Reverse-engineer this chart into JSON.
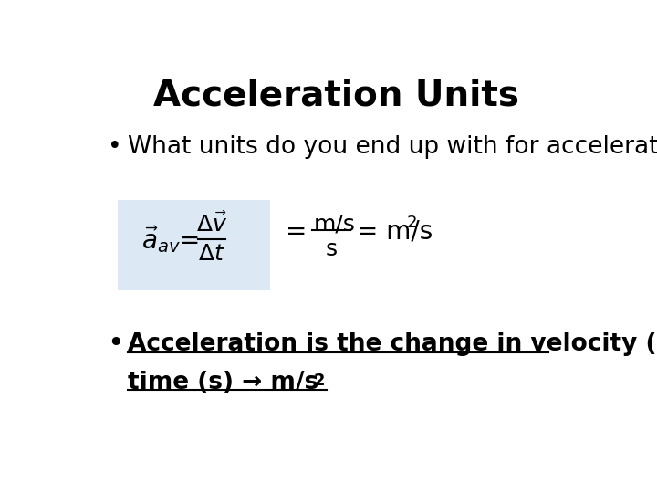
{
  "title": "Acceleration Units",
  "title_fontsize": 28,
  "title_fontweight": "bold",
  "bullet1": "What units do you end up with for acceleration?",
  "bullet1_fontsize": 19,
  "bullet2_line1": "Acceleration is the change in velocity (m/s) over",
  "bullet2_line2": "time (s) → m/s",
  "bullet2_fontsize": 19,
  "formula_box_color": "#dce9f5",
  "background_color": "#ffffff",
  "text_color": "#000000"
}
